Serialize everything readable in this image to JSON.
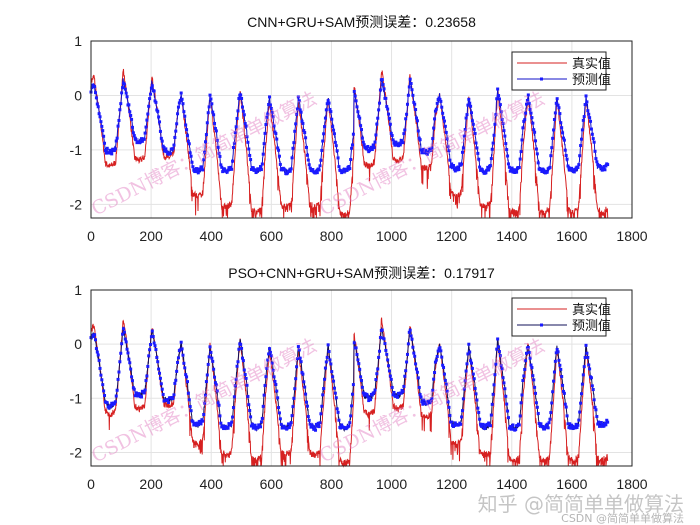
{
  "chart_data": [
    {
      "type": "line",
      "title": "CNN+GRU+SAM预测误差：0.23658",
      "xlim": [
        0,
        1800
      ],
      "ylim": [
        -2.25,
        1
      ],
      "xticks": [
        "0",
        "200",
        "400",
        "600",
        "800",
        "1000",
        "1200",
        "1400",
        "1600",
        "1800"
      ],
      "yticks": [
        "1",
        "0",
        "-1",
        "-2"
      ],
      "grid": true,
      "legend_position": "top-right",
      "legend": [
        "真实值",
        "预测值"
      ],
      "colors": {
        "true": "#d62020",
        "pred_line": "#1010c8",
        "pred_marker": "#1a1aff"
      },
      "n_points": 1720,
      "cycle_peak_x": [
        10,
        107,
        203,
        300,
        396,
        496,
        594,
        690,
        789,
        871,
        967,
        1061,
        1160,
        1257,
        1353,
        1454,
        1550,
        1647
      ],
      "series": [
        {
          "name": "真实值",
          "peaks": [
            0.35,
            0.48,
            0.33,
            0.0,
            0.0,
            0.1,
            -0.1,
            -0.1,
            -0.05,
            0.35,
            0.48,
            0.35,
            0.0,
            -0.05,
            0.1,
            0.0,
            -0.05,
            -0.05
          ],
          "troughs": [
            -1.35,
            -1.25,
            -1.2,
            -1.9,
            -2.1,
            -2.2,
            -2.1,
            -2.1,
            -2.25,
            -1.35,
            -1.25,
            -1.4,
            -1.9,
            -2.1,
            -2.2,
            -2.2,
            -2.2,
            -2.2
          ]
        },
        {
          "name": "预测值",
          "peaks": [
            0.2,
            0.3,
            0.25,
            0.0,
            0.0,
            0.1,
            -0.05,
            -0.05,
            -0.05,
            0.2,
            0.3,
            0.3,
            0.0,
            -0.05,
            0.1,
            0.0,
            -0.05,
            -0.05
          ],
          "troughs": [
            -1.1,
            -0.9,
            -1.1,
            -1.45,
            -1.45,
            -1.45,
            -1.45,
            -1.45,
            -1.45,
            -1.05,
            -0.95,
            -1.1,
            -1.4,
            -1.45,
            -1.45,
            -1.45,
            -1.45,
            -1.4
          ]
        }
      ]
    },
    {
      "type": "line",
      "title": "PSO+CNN+GRU+SAM预测误差：0.17917",
      "xlim": [
        0,
        1800
      ],
      "ylim": [
        -2.25,
        1
      ],
      "xticks": [
        "0",
        "200",
        "400",
        "600",
        "800",
        "1000",
        "1200",
        "1400",
        "1600",
        "1800"
      ],
      "yticks": [
        "1",
        "0",
        "-1",
        "-2"
      ],
      "grid": true,
      "legend_position": "top-right",
      "legend": [
        "真实值",
        "预测值"
      ],
      "colors": {
        "true": "#d62020",
        "pred_line": "#10105a",
        "pred_marker": "#1a1aff"
      },
      "n_points": 1720,
      "cycle_peak_x": [
        10,
        107,
        203,
        300,
        396,
        496,
        594,
        690,
        789,
        871,
        967,
        1061,
        1160,
        1257,
        1353,
        1454,
        1550,
        1647
      ],
      "series": [
        {
          "name": "真实值",
          "peaks": [
            0.35,
            0.48,
            0.33,
            0.0,
            0.0,
            0.1,
            -0.1,
            -0.1,
            -0.05,
            0.35,
            0.48,
            0.35,
            0.0,
            -0.05,
            0.1,
            0.0,
            -0.05,
            -0.05
          ],
          "troughs": [
            -1.35,
            -1.25,
            -1.2,
            -1.9,
            -2.1,
            -2.2,
            -2.1,
            -2.1,
            -2.25,
            -1.35,
            -1.25,
            -1.4,
            -1.9,
            -2.1,
            -2.2,
            -2.2,
            -2.2,
            -2.2
          ]
        },
        {
          "name": "预测值",
          "peaks": [
            0.2,
            0.3,
            0.28,
            0.0,
            -0.05,
            0.1,
            -0.05,
            -0.05,
            -0.05,
            0.2,
            0.3,
            0.3,
            0.0,
            -0.05,
            0.1,
            0.0,
            -0.05,
            -0.05
          ],
          "troughs": [
            -1.2,
            -1.0,
            -1.1,
            -1.55,
            -1.6,
            -1.6,
            -1.6,
            -1.6,
            -1.6,
            -1.05,
            -1.0,
            -1.15,
            -1.55,
            -1.6,
            -1.6,
            -1.6,
            -1.6,
            -1.55
          ]
        }
      ]
    }
  ],
  "watermarks": {
    "csdn_blog": "CSDN博客：简简单单做算法",
    "zhihu": "知乎 @简简单单做算法",
    "csdn": "CSDN @简简单单做算法"
  }
}
